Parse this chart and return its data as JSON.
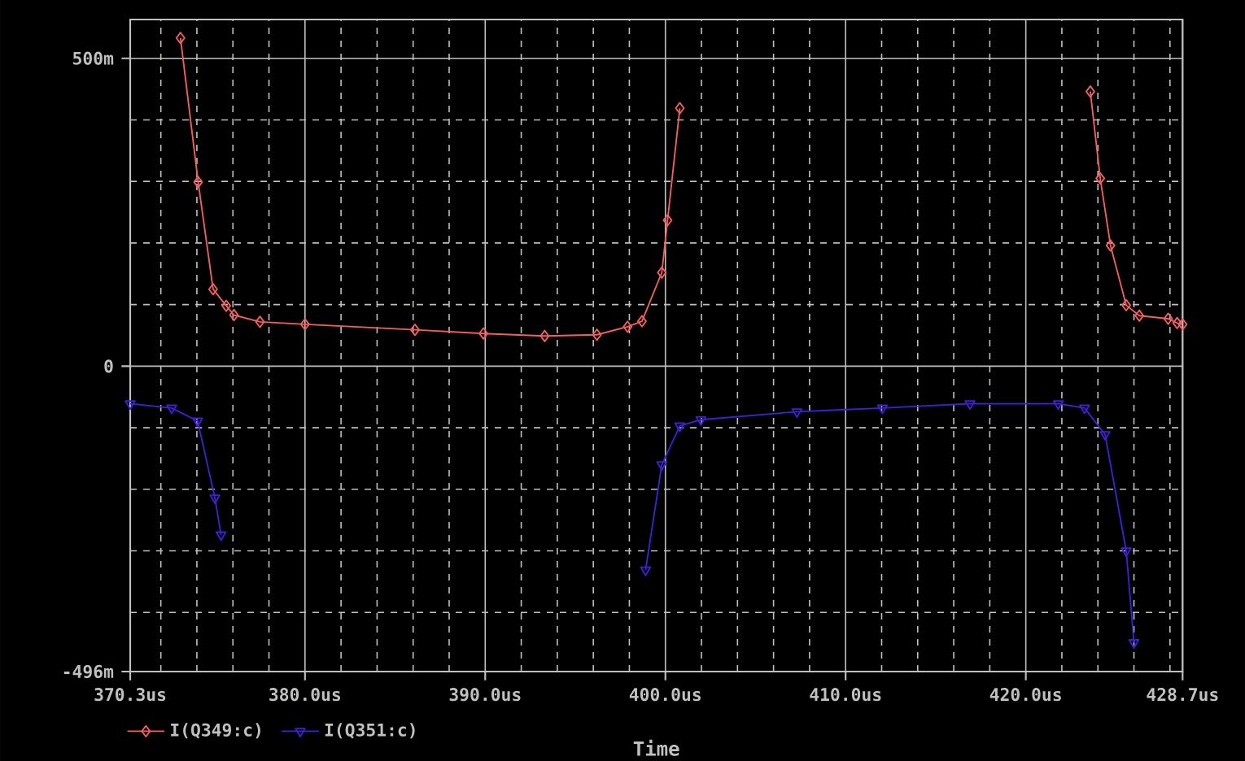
{
  "chart_data": {
    "type": "line",
    "xlabel": "Time",
    "grid": true,
    "legend": "bottom",
    "xlim": [
      370.3,
      428.7
    ],
    "ylim": [
      -496,
      563
    ],
    "xticks": [
      {
        "value": 370.3,
        "label": "370.3us"
      },
      {
        "value": 372,
        "label": null
      },
      {
        "value": 374,
        "label": null
      },
      {
        "value": 376,
        "label": null
      },
      {
        "value": 378,
        "label": null
      },
      {
        "value": 380,
        "label": "380.0us"
      },
      {
        "value": 382,
        "label": null
      },
      {
        "value": 384,
        "label": null
      },
      {
        "value": 386,
        "label": null
      },
      {
        "value": 388,
        "label": null
      },
      {
        "value": 390,
        "label": "390.0us"
      },
      {
        "value": 392,
        "label": null
      },
      {
        "value": 394,
        "label": null
      },
      {
        "value": 396,
        "label": null
      },
      {
        "value": 398,
        "label": null
      },
      {
        "value": 400,
        "label": "400.0us"
      },
      {
        "value": 402,
        "label": null
      },
      {
        "value": 404,
        "label": null
      },
      {
        "value": 406,
        "label": null
      },
      {
        "value": 408,
        "label": null
      },
      {
        "value": 410,
        "label": "410.0us"
      },
      {
        "value": 412,
        "label": null
      },
      {
        "value": 414,
        "label": null
      },
      {
        "value": 416,
        "label": null
      },
      {
        "value": 418,
        "label": null
      },
      {
        "value": 420,
        "label": "420.0us"
      },
      {
        "value": 422,
        "label": null
      },
      {
        "value": 424,
        "label": null
      },
      {
        "value": 426,
        "label": null
      },
      {
        "value": 428,
        "label": null
      },
      {
        "value": 428.7,
        "label": "428.7us"
      }
    ],
    "yticks": [
      {
        "value": -496,
        "label": "-496m"
      },
      {
        "value": -400,
        "label": null
      },
      {
        "value": -300,
        "label": null
      },
      {
        "value": -200,
        "label": null
      },
      {
        "value": -100,
        "label": null
      },
      {
        "value": 0,
        "label": "0"
      },
      {
        "value": 100,
        "label": null
      },
      {
        "value": 200,
        "label": null
      },
      {
        "value": 300,
        "label": null
      },
      {
        "value": 400,
        "label": null
      },
      {
        "value": 500,
        "label": "500m"
      }
    ],
    "series": [
      {
        "name": "I(Q349:c)",
        "color": "#f06060",
        "marker": "diamond",
        "x": [
          373.09,
          374.07,
          374.9,
          375.63,
          376.06,
          377.5,
          380.0,
          386.1,
          389.9,
          393.3,
          396.2,
          397.9,
          398.7,
          399.8,
          400.12,
          400.8,
          412.0,
          423.58,
          424.13,
          424.7,
          425.57,
          426.3,
          427.9,
          428.4,
          428.7
        ],
        "values": [
          533,
          299,
          125,
          98,
          83,
          72,
          68,
          59,
          53,
          49,
          51,
          64,
          73,
          152,
          237,
          419,
          null,
          446,
          305,
          196,
          99,
          82,
          77,
          70,
          68
        ]
      },
      {
        "name": "I(Q351:c)",
        "color": "#4020d0",
        "marker": "triangle",
        "x": [
          370.3,
          372.6,
          374.04,
          375.0,
          375.34,
          387.0,
          398.9,
          399.8,
          400.8,
          401.97,
          407.3,
          412.04,
          416.9,
          421.8,
          423.26,
          424.4,
          425.57,
          426.0
        ],
        "values": [
          -61,
          -68,
          -89,
          -214,
          -274,
          null,
          -331,
          -160,
          -97,
          -87,
          -74,
          -68,
          -61,
          -61,
          -68,
          -111,
          -300,
          -449
        ]
      }
    ]
  }
}
